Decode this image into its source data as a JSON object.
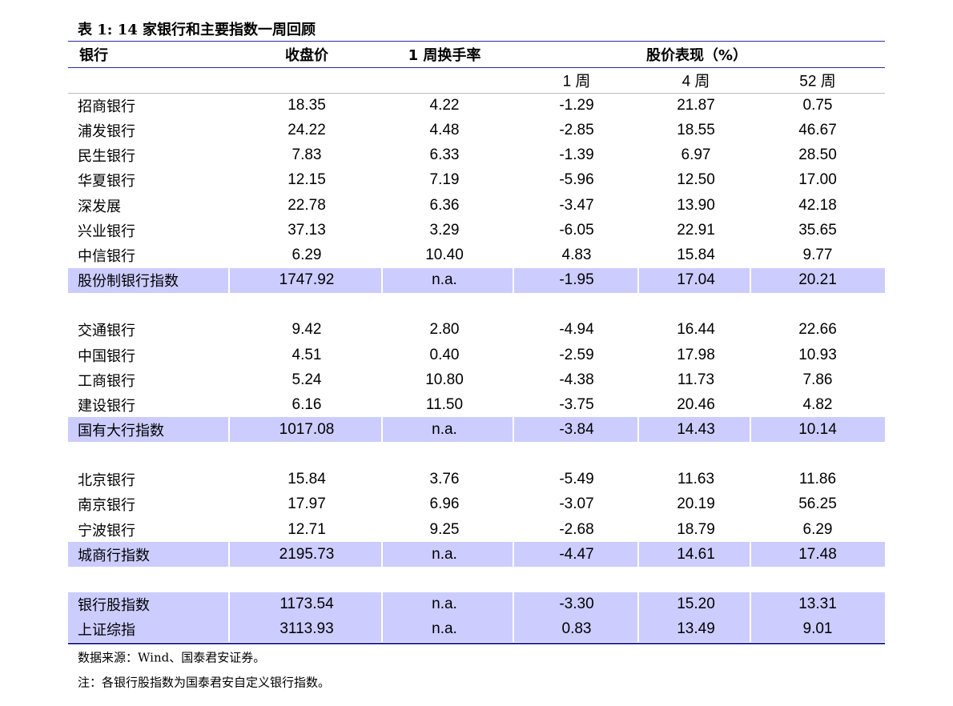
{
  "title": "表 1: 14 家银行和主要指数一周回顾",
  "header": [
    "银行",
    "收盘价",
    "1 周换手率",
    "股价表现（%）"
  ],
  "subheader": [
    "1 周",
    "4 周",
    "52 周"
  ],
  "groups": [
    {
      "rows": [
        [
          "招商银行",
          "18.35",
          "4.22",
          "-1.29",
          "21.87",
          "0.75"
        ],
        [
          "浦发银行",
          "24.22",
          "4.48",
          "-2.85",
          "18.55",
          "46.67"
        ],
        [
          "民生银行",
          "7.83",
          "6.33",
          "-1.39",
          "6.97",
          "28.50"
        ],
        [
          "华夏银行",
          "12.15",
          "7.19",
          "-5.96",
          "12.50",
          "17.00"
        ],
        [
          "深发展",
          "22.78",
          "6.36",
          "-3.47",
          "13.90",
          "42.18"
        ],
        [
          "兴业银行",
          "37.13",
          "3.29",
          "-6.05",
          "22.91",
          "35.65"
        ],
        [
          "中信银行",
          "6.29",
          "10.40",
          "4.83",
          "15.84",
          "9.77"
        ]
      ],
      "index_rows": [
        [
          "股份制银行指数",
          "1747.92",
          "n.a.",
          "-1.95",
          "17.04",
          "20.21"
        ]
      ]
    },
    {
      "rows": [
        [
          "交通银行",
          "9.42",
          "2.80",
          "-4.94",
          "16.44",
          "22.66"
        ],
        [
          "中国银行",
          "4.51",
          "0.40",
          "-2.59",
          "17.98",
          "10.93"
        ],
        [
          "工商银行",
          "5.24",
          "10.80",
          "-4.38",
          "11.73",
          "7.86"
        ],
        [
          "建设银行",
          "6.16",
          "11.50",
          "-3.75",
          "20.46",
          "4.82"
        ]
      ],
      "index_rows": [
        [
          "国有大行指数",
          "1017.08",
          "n.a.",
          "-3.84",
          "14.43",
          "10.14"
        ]
      ]
    },
    {
      "rows": [
        [
          "北京银行",
          "15.84",
          "3.76",
          "-5.49",
          "11.63",
          "11.86"
        ],
        [
          "南京银行",
          "17.97",
          "6.96",
          "-3.07",
          "20.19",
          "56.25"
        ],
        [
          "宁波银行",
          "12.71",
          "9.25",
          "-2.68",
          "18.79",
          "6.29"
        ]
      ],
      "index_rows": [
        [
          "城商行指数",
          "2195.73",
          "n.a.",
          "-4.47",
          "14.61",
          "17.48"
        ]
      ]
    },
    {
      "rows": [],
      "index_rows": [
        [
          "银行股指数",
          "1173.54",
          "n.a.",
          "-3.30",
          "15.20",
          "13.31"
        ],
        [
          "上证综指",
          "3113.93",
          "n.a.",
          "0.83",
          "13.49",
          "9.01"
        ]
      ]
    }
  ],
  "notes": [
    "数据来源：Wind、国泰君安证券。",
    "注：各银行股指数为国泰君安自定义银行指数。"
  ]
}
